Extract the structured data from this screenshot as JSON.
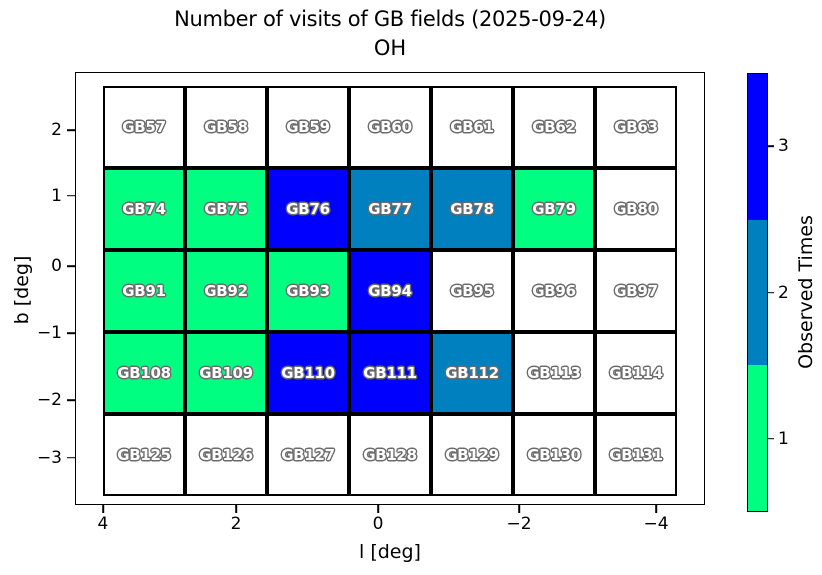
{
  "chart_data": {
    "type": "heatmap",
    "title": "Number of visits of GB fields (2025-09-24)",
    "subtitle": "OH",
    "xlabel": "l [deg]",
    "ylabel": "b [deg]",
    "x_ticks": [
      "4",
      "2",
      "0",
      "−2",
      "−4"
    ],
    "y_ticks": [
      "2",
      "1",
      "0",
      "−1",
      "−2",
      "−3"
    ],
    "x_axis_reversed": true,
    "xlim": [
      4.4,
      -4.7
    ],
    "ylim": [
      -3.6,
      2.9
    ],
    "grid_lines": false,
    "colorbar": {
      "label": "Observed Times",
      "ticks": [
        "3",
        "2",
        "1"
      ],
      "segment_colors_top_to_bottom": [
        "#0000FF",
        "#0080BF",
        "#00FF80"
      ]
    },
    "visit_colors": {
      "0": "#FFFFFF",
      "1": "#00FF80",
      "2": "#0080BF",
      "3": "#0000FF"
    },
    "grid": {
      "columns": 7,
      "rows": 5,
      "cells": [
        [
          {
            "field": "GB57",
            "visits": 0
          },
          {
            "field": "GB58",
            "visits": 0
          },
          {
            "field": "GB59",
            "visits": 0
          },
          {
            "field": "GB60",
            "visits": 0
          },
          {
            "field": "GB61",
            "visits": 0
          },
          {
            "field": "GB62",
            "visits": 0
          },
          {
            "field": "GB63",
            "visits": 0
          }
        ],
        [
          {
            "field": "GB74",
            "visits": 1
          },
          {
            "field": "GB75",
            "visits": 1
          },
          {
            "field": "GB76",
            "visits": 3
          },
          {
            "field": "GB77",
            "visits": 2
          },
          {
            "field": "GB78",
            "visits": 2
          },
          {
            "field": "GB79",
            "visits": 1
          },
          {
            "field": "GB80",
            "visits": 0
          }
        ],
        [
          {
            "field": "GB91",
            "visits": 1
          },
          {
            "field": "GB92",
            "visits": 1
          },
          {
            "field": "GB93",
            "visits": 1
          },
          {
            "field": "GB94",
            "visits": 3
          },
          {
            "field": "GB95",
            "visits": 0
          },
          {
            "field": "GB96",
            "visits": 0
          },
          {
            "field": "GB97",
            "visits": 0
          }
        ],
        [
          {
            "field": "GB108",
            "visits": 1
          },
          {
            "field": "GB109",
            "visits": 1
          },
          {
            "field": "GB110",
            "visits": 3
          },
          {
            "field": "GB111",
            "visits": 3
          },
          {
            "field": "GB112",
            "visits": 2
          },
          {
            "field": "GB113",
            "visits": 0
          },
          {
            "field": "GB114",
            "visits": 0
          }
        ],
        [
          {
            "field": "GB125",
            "visits": 0
          },
          {
            "field": "GB126",
            "visits": 0
          },
          {
            "field": "GB127",
            "visits": 0
          },
          {
            "field": "GB128",
            "visits": 0
          },
          {
            "field": "GB129",
            "visits": 0
          },
          {
            "field": "GB130",
            "visits": 0
          },
          {
            "field": "GB131",
            "visits": 0
          }
        ]
      ]
    }
  }
}
